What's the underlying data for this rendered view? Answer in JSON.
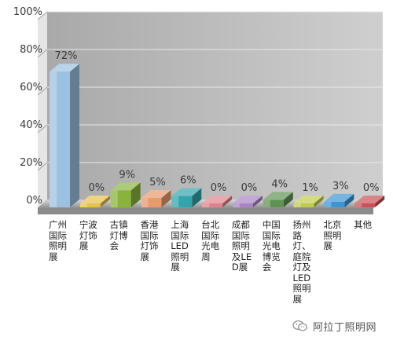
{
  "chart_data": {
    "type": "bar",
    "categories": [
      "广州国际照明展",
      "宁波灯饰展",
      "古镇灯博会",
      "香港国际灯饰展",
      "上海国际LED照明展",
      "台北国际光电周",
      "成都国际照明及LED展",
      "中国国际光电博览会",
      "扬州路灯、庭院灯及LED照明展",
      "北京照明展",
      "其他"
    ],
    "values": [
      72,
      0,
      9,
      5,
      6,
      0,
      0,
      4,
      1,
      3,
      0
    ],
    "value_labels": [
      "72%",
      "0%",
      "9%",
      "5%",
      "6%",
      "0%",
      "0%",
      "4%",
      "1%",
      "3%",
      "0%"
    ],
    "colors": [
      "#9cc0e0",
      "#e6c24a",
      "#8ab33e",
      "#e79a6c",
      "#33a3ac",
      "#e0828c",
      "#a983c4",
      "#5f9254",
      "#c0cb4e",
      "#3d95d4",
      "#c95055"
    ],
    "ylim": [
      0,
      100
    ],
    "yticks": [
      "0%",
      "20%",
      "40%",
      "60%",
      "80%",
      "100%"
    ],
    "grid": true,
    "legend": "none",
    "title": "",
    "xlabel": "",
    "ylabel": ""
  },
  "watermark": {
    "text": "阿拉丁照明网",
    "icon": "wechat-icon"
  }
}
